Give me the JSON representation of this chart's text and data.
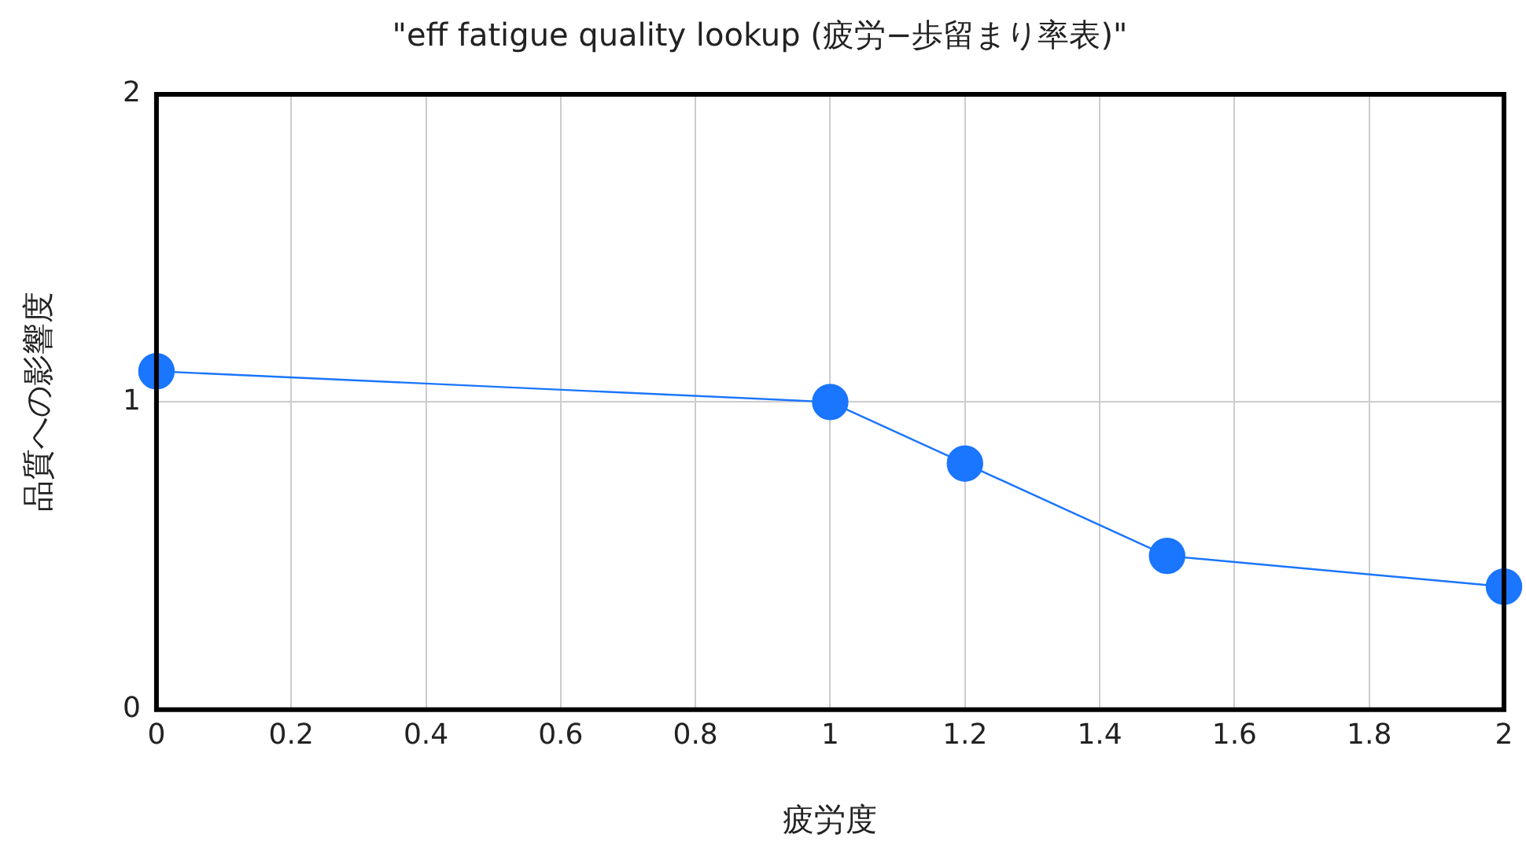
{
  "chart_data": {
    "type": "line",
    "title": "\"eff fatigue quality lookup (疲労−歩留まり率表)\"",
    "xlabel": "疲労度",
    "ylabel": "品質への影響度",
    "x": [
      0,
      1,
      1.2,
      1.5,
      2
    ],
    "series": [
      {
        "color": "#1a75ff",
        "values": [
          1.1,
          1,
          0.8,
          0.5,
          0.4
        ]
      }
    ],
    "xlim": [
      0,
      2
    ],
    "xticks": [
      0,
      0.2,
      0.4,
      0.6,
      0.8,
      1,
      1.2,
      1.4,
      1.6,
      1.8,
      2
    ],
    "ylim": [
      0,
      2
    ],
    "yticks": [
      0,
      1,
      2
    ],
    "grid": true,
    "legend": false,
    "marker": "circle",
    "line_style": "solid"
  }
}
